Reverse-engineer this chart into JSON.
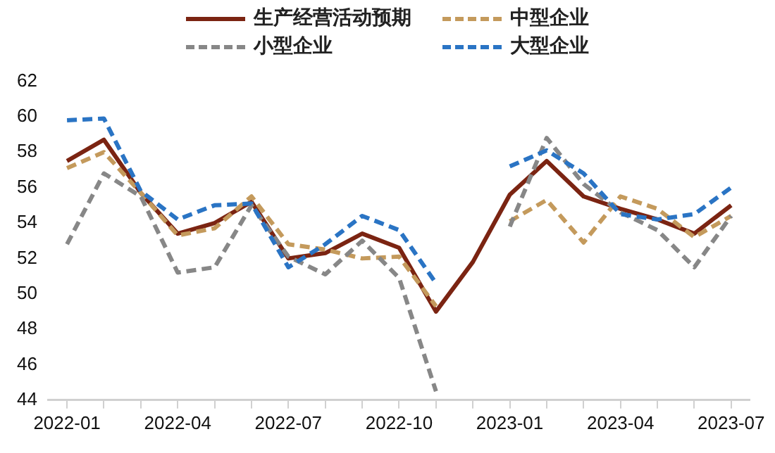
{
  "chart_data": {
    "type": "line",
    "categories": [
      "2022-01",
      null,
      null,
      "2022-04",
      null,
      null,
      "2022-07",
      null,
      null,
      "2022-10",
      null,
      null,
      "2023-01",
      null,
      null,
      "2023-04",
      null,
      null,
      "2023-07"
    ],
    "series": [
      {
        "name": "生产经营活动预期",
        "color": "#7b2412",
        "line_style": "solid",
        "values": [
          57.5,
          58.7,
          55.7,
          53.4,
          54.0,
          55.2,
          52.0,
          52.3,
          53.4,
          52.6,
          49.0,
          51.8,
          55.6,
          57.5,
          55.5,
          54.8,
          54.2,
          53.4,
          55.0
        ]
      },
      {
        "name": "中型企业",
        "color": "#c49a5c",
        "line_style": "dashed",
        "values": [
          57.1,
          58.0,
          55.7,
          53.3,
          53.7,
          55.5,
          52.8,
          52.5,
          52.0,
          52.1,
          49.3,
          null,
          54.1,
          55.3,
          52.9,
          55.5,
          54.8,
          53.2,
          54.4
        ]
      },
      {
        "name": "小型企业",
        "color": "#878787",
        "line_style": "dashed",
        "values": [
          52.8,
          56.8,
          55.5,
          51.2,
          51.5,
          55.0,
          52.1,
          51.1,
          53.0,
          50.9,
          44.5,
          null,
          53.8,
          58.8,
          56.2,
          54.6,
          53.6,
          51.5,
          54.4
        ]
      },
      {
        "name": "大型企业",
        "color": "#2a74c4",
        "line_style": "dashed",
        "values": [
          59.8,
          59.9,
          55.8,
          54.2,
          55.0,
          55.1,
          51.5,
          52.8,
          54.4,
          53.6,
          50.6,
          null,
          57.2,
          58.1,
          56.8,
          54.5,
          54.2,
          54.5,
          56.0
        ]
      }
    ],
    "ylim": [
      44,
      62
    ],
    "yticks": [
      44,
      46,
      48,
      50,
      52,
      54,
      56,
      58,
      60,
      62
    ],
    "grid": false,
    "legend": "top",
    "marker": "none"
  }
}
